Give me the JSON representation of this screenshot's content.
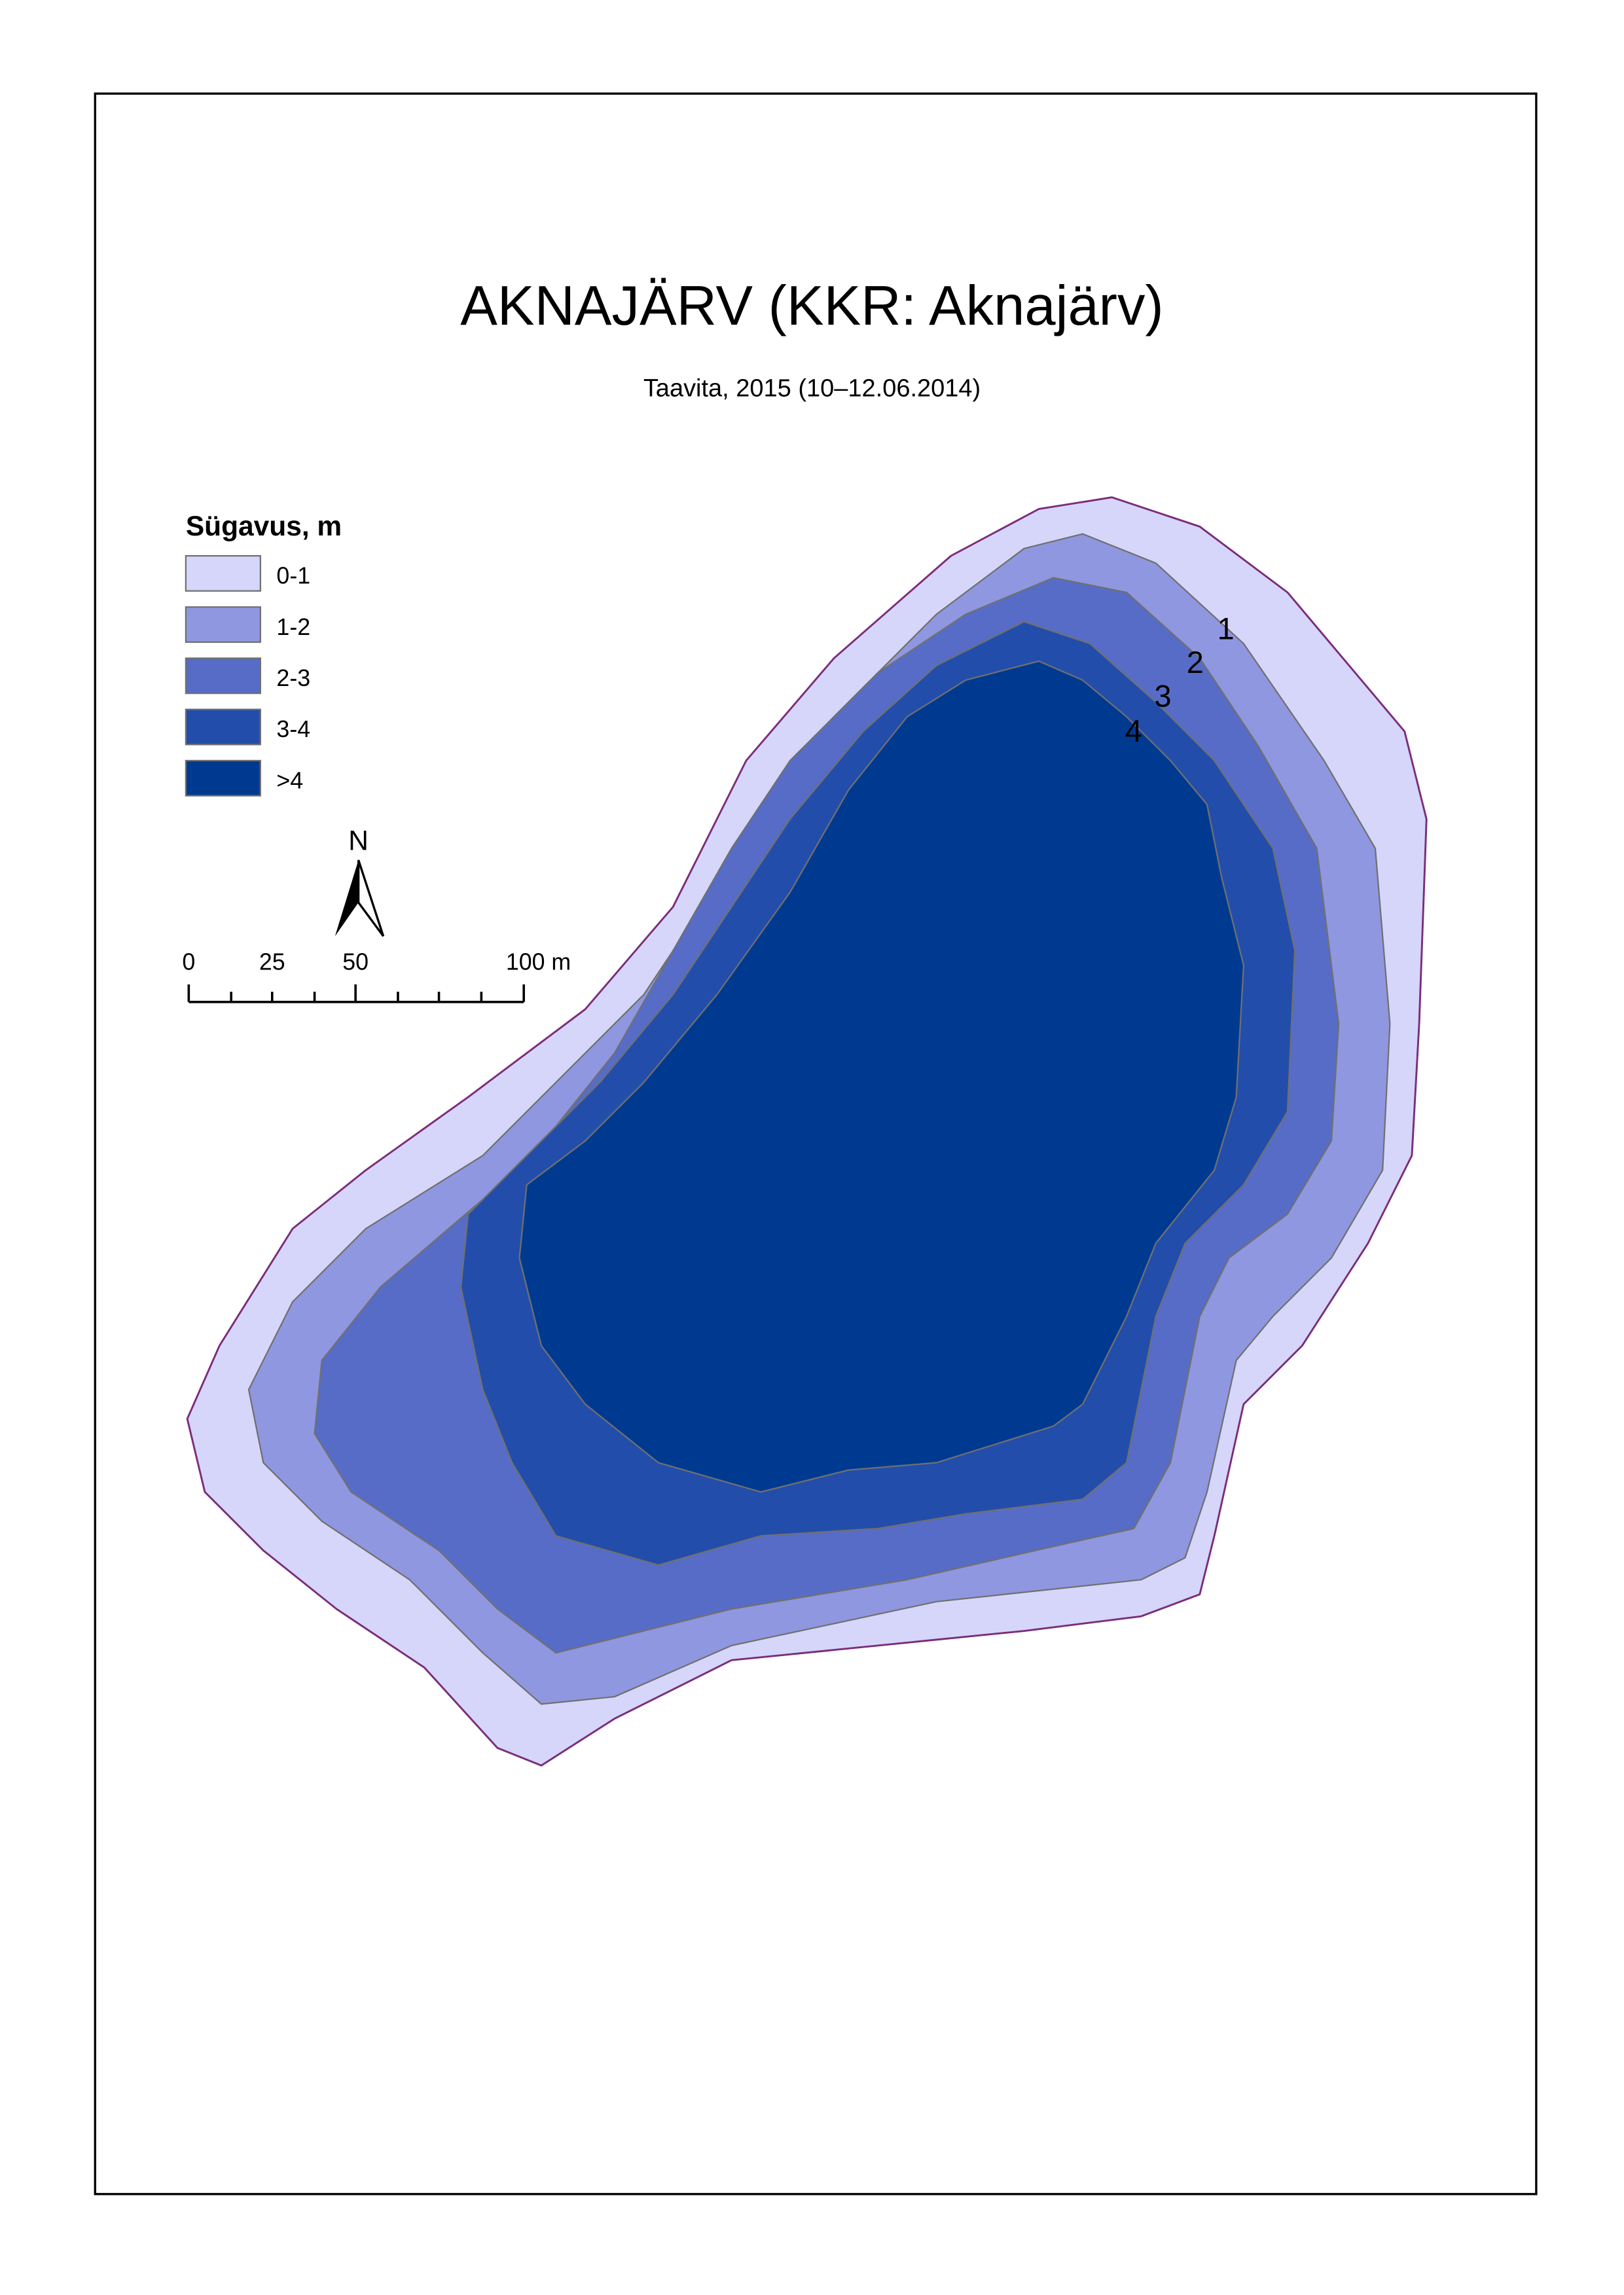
{
  "title": "AKNAJÄRV (KKR: Aknajärv)",
  "subtitle": "Taavita, 2015 (10–12.06.2014)",
  "legend": {
    "title": "Sügavus, m",
    "items": [
      {
        "label": "0-1",
        "color": "#D6D6FA"
      },
      {
        "label": "1-2",
        "color": "#8F97E0"
      },
      {
        "label": "2-3",
        "color": "#566CC7"
      },
      {
        "label": "3-4",
        "color": "#234DAA"
      },
      {
        "label": ">4",
        "color": "#003A90"
      }
    ]
  },
  "north_arrow": {
    "label": "N"
  },
  "scale_bar": {
    "labels": [
      "0",
      "25",
      "50",
      "100 m"
    ]
  },
  "contour_labels": [
    "1",
    "2",
    "3",
    "4"
  ],
  "shore_color": "#7B2D7B",
  "contour_line_color": "#707070"
}
